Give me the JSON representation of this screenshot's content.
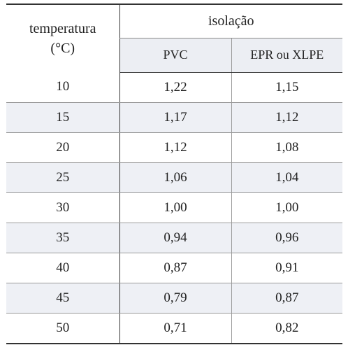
{
  "table": {
    "header": {
      "temperature_line1": "temperatura",
      "temperature_line2": "(°C)",
      "group": "isolação",
      "col_pvc": "PVC",
      "col_epr": "EPR ou XLPE"
    },
    "rows": [
      {
        "temp": "10",
        "pvc": "1,22",
        "epr": "1,15"
      },
      {
        "temp": "15",
        "pvc": "1,17",
        "epr": "1,12"
      },
      {
        "temp": "20",
        "pvc": "1,12",
        "epr": "1,08"
      },
      {
        "temp": "25",
        "pvc": "1,06",
        "epr": "1,04"
      },
      {
        "temp": "30",
        "pvc": "1,00",
        "epr": "1,00"
      },
      {
        "temp": "35",
        "pvc": "0,94",
        "epr": "0,96"
      },
      {
        "temp": "40",
        "pvc": "0,87",
        "epr": "0,91"
      },
      {
        "temp": "45",
        "pvc": "0,79",
        "epr": "0,87"
      },
      {
        "temp": "50",
        "pvc": "0,71",
        "epr": "0,82"
      }
    ]
  }
}
